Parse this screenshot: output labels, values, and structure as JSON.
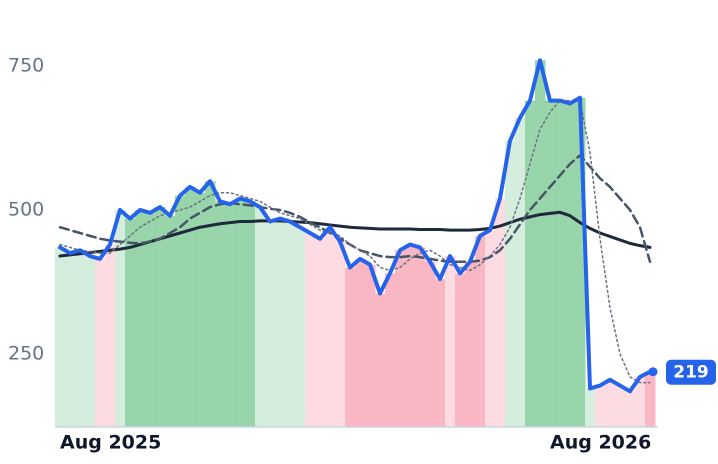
{
  "chart_data": {
    "type": "line",
    "categories": [
      "Aug 2025",
      null,
      null,
      null,
      null,
      null,
      null,
      null,
      null,
      null,
      null,
      null,
      null,
      null,
      null,
      null,
      null,
      null,
      null,
      null,
      null,
      null,
      null,
      null,
      null,
      null,
      null,
      null,
      null,
      null,
      null,
      null,
      null,
      null,
      null,
      null,
      null,
      null,
      null,
      null,
      null,
      null,
      null,
      null,
      null,
      null,
      null,
      null,
      null,
      "Aug 2026",
      null,
      null,
      null,
      null,
      null,
      null,
      null,
      null,
      null,
      null
    ],
    "series": [
      {
        "color": "#2563eb",
        "style": "solid",
        "width": 4,
        "values": [
          435,
          425,
          430,
          420,
          415,
          440,
          500,
          485,
          500,
          495,
          505,
          490,
          525,
          540,
          530,
          550,
          515,
          510,
          520,
          515,
          505,
          480,
          485,
          480,
          470,
          460,
          450,
          470,
          445,
          400,
          415,
          405,
          355,
          390,
          430,
          440,
          435,
          410,
          380,
          420,
          390,
          410,
          455,
          465,
          520,
          620,
          660,
          690,
          760,
          690,
          690,
          685,
          695,
          190,
          195,
          205,
          195,
          185,
          210,
          219
        ]
      },
      {
        "color": "#6b7280",
        "style": "dotted",
        "width": 1.5,
        "values": [
          440,
          435,
          430,
          428,
          425,
          425,
          440,
          455,
          470,
          480,
          490,
          495,
          500,
          505,
          515,
          525,
          530,
          530,
          525,
          520,
          515,
          505,
          495,
          490,
          485,
          475,
          465,
          460,
          455,
          440,
          430,
          420,
          400,
          395,
          400,
          415,
          425,
          430,
          420,
          405,
          400,
          395,
          405,
          420,
          440,
          470,
          520,
          580,
          640,
          670,
          690,
          690,
          690,
          600,
          450,
          330,
          250,
          210,
          200,
          200
        ]
      },
      {
        "color": "#475569",
        "style": "dashed",
        "width": 2.5,
        "values": [
          470,
          465,
          460,
          455,
          450,
          447,
          445,
          443,
          442,
          445,
          450,
          460,
          470,
          485,
          495,
          505,
          510,
          512,
          510,
          508,
          505,
          502,
          500,
          495,
          488,
          478,
          470,
          460,
          450,
          440,
          430,
          425,
          420,
          418,
          418,
          420,
          418,
          415,
          412,
          410,
          410,
          410,
          412,
          418,
          430,
          450,
          475,
          500,
          520,
          540,
          560,
          580,
          595,
          575,
          555,
          540,
          520,
          500,
          470,
          410
        ]
      },
      {
        "color": "#1e293b",
        "style": "solid",
        "width": 3,
        "values": [
          420,
          422,
          424,
          426,
          428,
          430,
          432,
          435,
          440,
          445,
          450,
          455,
          460,
          465,
          470,
          473,
          476,
          478,
          480,
          480,
          481,
          481,
          481,
          480,
          479,
          478,
          476,
          474,
          472,
          470,
          469,
          468,
          467,
          467,
          467,
          467,
          466,
          466,
          466,
          465,
          465,
          465,
          466,
          468,
          472,
          478,
          484,
          488,
          492,
          494,
          496,
          490,
          478,
          468,
          460,
          454,
          448,
          442,
          438,
          435
        ]
      }
    ],
    "column_colors": [
      "#d3ecda",
      "#d3ecda",
      "#d3ecda",
      "#d3ecda",
      "#fdd9e1",
      "#fdd9e1",
      "#d3ecda",
      "#93d3a5",
      "#93d3a5",
      "#93d3a5",
      "#93d3a5",
      "#93d3a5",
      "#93d3a5",
      "#93d3a5",
      "#93d3a5",
      "#93d3a5",
      "#93d3a5",
      "#93d3a5",
      "#93d3a5",
      "#93d3a5",
      "#d3ecda",
      "#d3ecda",
      "#d3ecda",
      "#d3ecda",
      "#d3ecda",
      "#fdd9e1",
      "#fdd9e1",
      "#fdd9e1",
      "#fdd9e1",
      "#f9b3c1",
      "#f9b3c1",
      "#f9b3c1",
      "#f9b3c1",
      "#f9b3c1",
      "#f9b3c1",
      "#f9b3c1",
      "#f9b3c1",
      "#f9b3c1",
      "#f9b3c1",
      "#fdd9e1",
      "#f9b3c1",
      "#f9b3c1",
      "#f9b3c1",
      "#fdd9e1",
      "#fdd9e1",
      "#d3ecda",
      "#d3ecda",
      "#93d3a5",
      "#93d3a5",
      "#93d3a5",
      "#93d3a5",
      "#93d3a5",
      "#93d3a5",
      "#d3ecda",
      "#fdd9e1",
      "#fdd9e1",
      "#fdd9e1",
      "#fdd9e1",
      "#fdd9e1",
      "#f9b3c1"
    ],
    "ylim": [
      123,
      830
    ],
    "yticks": [
      250,
      500,
      750
    ]
  }
}
